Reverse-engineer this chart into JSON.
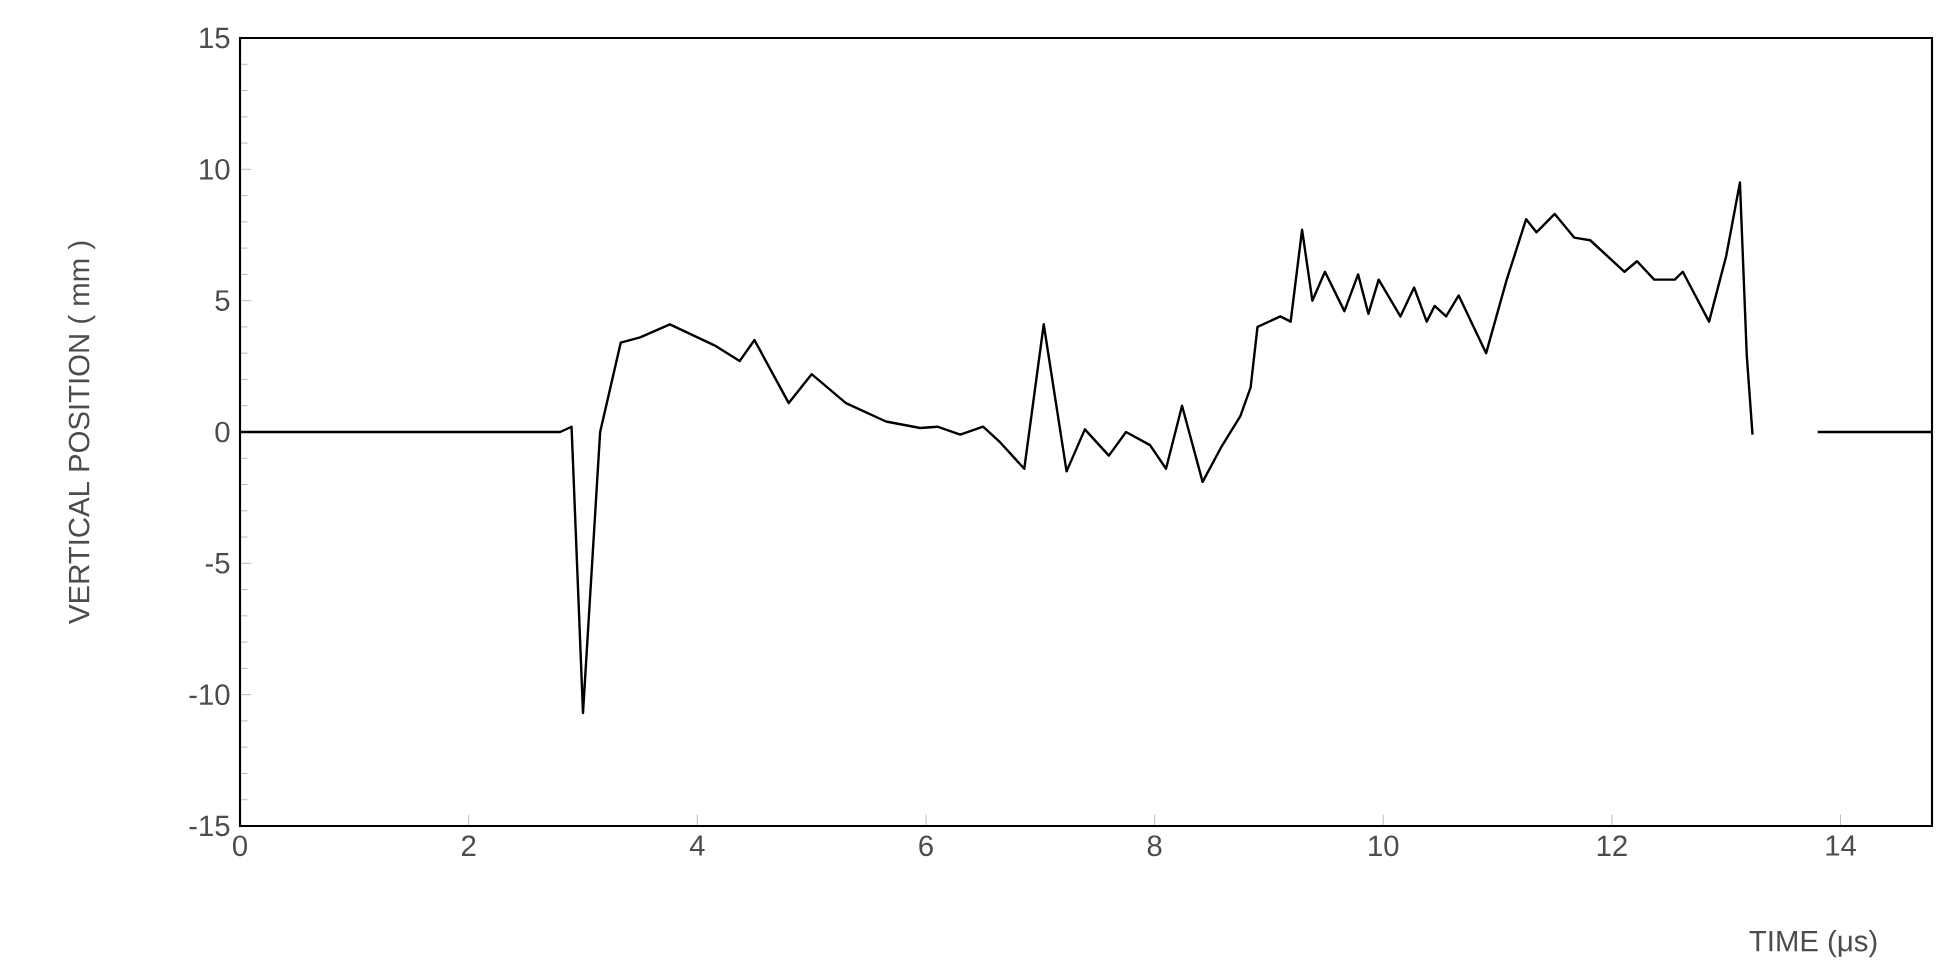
{
  "chart_data": {
    "type": "line",
    "xlabel": "TIME (μs)",
    "ylabel": "VERTICAL POSITION ( mm )",
    "xlim": [
      0,
      14.8
    ],
    "ylim": [
      -15,
      15
    ],
    "xticks": [
      0,
      2,
      4,
      6,
      8,
      10,
      12,
      14
    ],
    "yticks": [
      -15,
      -10,
      -5,
      0,
      5,
      10,
      15
    ],
    "line_style": "solid",
    "series": [
      {
        "color": "#000000",
        "x": [
          0,
          2.8,
          2.9,
          3.0,
          3.15,
          3.33,
          3.5,
          3.76,
          4.15,
          4.37,
          4.5,
          4.8,
          5.0,
          5.3,
          5.65,
          5.95,
          6.1,
          6.3,
          6.5,
          6.65,
          6.86,
          7.03,
          7.23,
          7.39,
          7.6,
          7.75,
          7.96,
          8.1,
          8.24,
          8.42,
          8.58,
          8.75,
          8.84,
          8.9,
          9.1,
          9.19,
          9.29,
          9.38,
          9.49,
          9.66,
          9.78,
          9.87,
          9.96,
          10.15,
          10.27,
          10.38,
          10.45,
          10.55,
          10.66,
          10.9,
          11.08,
          11.25,
          11.34,
          11.5,
          11.67,
          11.81,
          12.11,
          12.22,
          12.37,
          12.55,
          12.62,
          12.85,
          13.0,
          13.12,
          13.18,
          13.23,
          13.5,
          13.8,
          14.8
        ],
        "values": [
          0,
          0,
          0.2,
          -10.7,
          0,
          3.4,
          3.6,
          4.1,
          3.3,
          2.7,
          3.5,
          1.1,
          2.2,
          1.1,
          0.4,
          0.15,
          0.2,
          -0.1,
          0.2,
          -0.4,
          -1.4,
          4.1,
          -1.5,
          0.1,
          -0.9,
          0,
          -0.5,
          -1.4,
          1.0,
          -1.9,
          -0.6,
          0.6,
          1.7,
          4.0,
          4.4,
          4.2,
          7.7,
          5.0,
          6.1,
          4.6,
          6.0,
          4.5,
          5.8,
          4.4,
          5.5,
          4.2,
          4.8,
          4.4,
          5.2,
          3.0,
          5.8,
          8.1,
          7.6,
          8.3,
          7.4,
          7.3,
          6.1,
          6.5,
          5.8,
          5.8,
          6.1,
          4.2,
          6.7,
          9.5,
          2.9,
          -0.1,
          null,
          0,
          0
        ]
      }
    ]
  }
}
